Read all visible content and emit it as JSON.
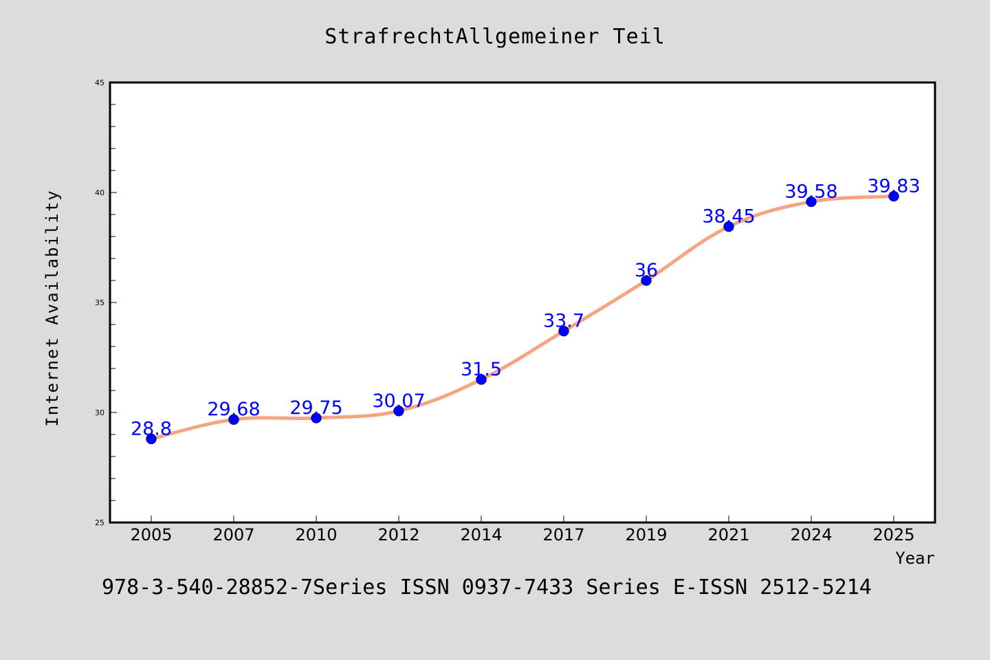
{
  "chart_data": {
    "type": "line",
    "title": "StrafrechtAllgemeiner Teil",
    "xlabel": "Year",
    "ylabel": "Internet Availability",
    "footer": "978-3-540-28852-7Series ISSN 0937-7433 Series E-ISSN 2512-5214",
    "categories": [
      "2005",
      "2007",
      "2010",
      "2012",
      "2014",
      "2017",
      "2019",
      "2021",
      "2024",
      "2025"
    ],
    "values": [
      28.8,
      29.68,
      29.75,
      30.07,
      31.5,
      33.7,
      36,
      38.45,
      39.58,
      39.83
    ],
    "data_labels": [
      "28.8",
      "29.68",
      "29.75",
      "30.07",
      "31.5",
      "33.7",
      "36",
      "38.45",
      "39.58",
      "39.83"
    ],
    "ylim": [
      25,
      45
    ],
    "yticks": [
      25,
      30,
      35,
      40,
      45
    ],
    "ytick_labels": [
      "25",
      "30",
      "35",
      "40",
      "45"
    ],
    "line_color": "#f4a582",
    "marker_color": "#0000ff",
    "label_color": "#0000ff",
    "grid": false,
    "background": "#dcdcdc",
    "plot_background": "#ffffff"
  }
}
